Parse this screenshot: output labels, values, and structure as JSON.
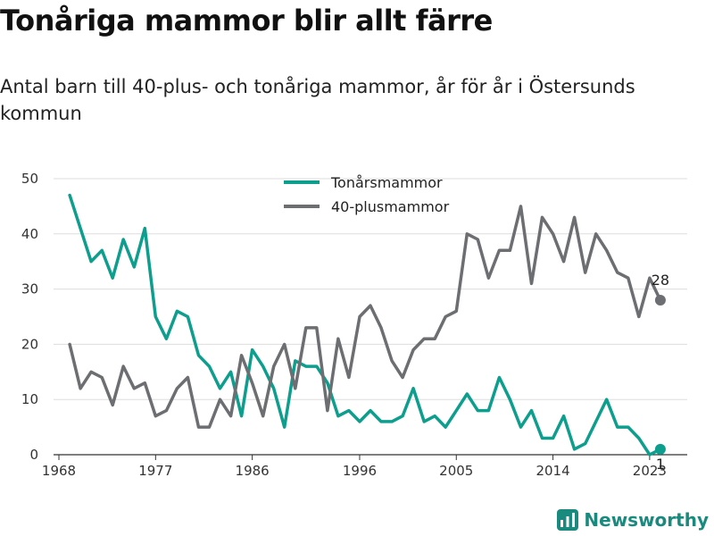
{
  "title": "Tonåriga mammor blir allt färre",
  "subtitle": "Antal barn till 40-plus- och tonåriga mammor, år för år i Östersunds kommun",
  "brand": "Newsworthy",
  "chart_data": {
    "type": "line",
    "x": [
      1969,
      1970,
      1971,
      1972,
      1973,
      1974,
      1975,
      1976,
      1977,
      1978,
      1979,
      1980,
      1981,
      1982,
      1983,
      1984,
      1985,
      1986,
      1987,
      1988,
      1989,
      1990,
      1991,
      1992,
      1993,
      1994,
      1995,
      1996,
      1997,
      1998,
      1999,
      2000,
      2001,
      2002,
      2003,
      2004,
      2005,
      2006,
      2007,
      2008,
      2009,
      2010,
      2011,
      2012,
      2013,
      2014,
      2015,
      2016,
      2017,
      2018,
      2019,
      2020,
      2021,
      2022,
      2023,
      2024
    ],
    "series": [
      {
        "name": "Tonårsmammor",
        "color": "#0e9e8e",
        "values": [
          47,
          41,
          35,
          37,
          32,
          39,
          34,
          41,
          25,
          21,
          26,
          25,
          18,
          16,
          12,
          15,
          7,
          19,
          16,
          12,
          5,
          17,
          16,
          16,
          13,
          7,
          8,
          6,
          8,
          6,
          6,
          7,
          12,
          6,
          7,
          5,
          8,
          11,
          8,
          8,
          14,
          10,
          5,
          8,
          3,
          3,
          7,
          1,
          2,
          6,
          10,
          5,
          5,
          3,
          0,
          1
        ]
      },
      {
        "name": "40-plusmammor",
        "color": "#6d6e71",
        "values": [
          20,
          12,
          15,
          14,
          9,
          16,
          12,
          13,
          7,
          8,
          12,
          14,
          5,
          5,
          10,
          7,
          18,
          13,
          7,
          16,
          20,
          12,
          23,
          23,
          8,
          21,
          14,
          25,
          27,
          23,
          17,
          14,
          19,
          21,
          21,
          25,
          26,
          40,
          39,
          32,
          37,
          37,
          45,
          31,
          43,
          40,
          35,
          43,
          33,
          40,
          37,
          33,
          32,
          25,
          32,
          28
        ]
      }
    ],
    "end_labels": [
      "1",
      "28"
    ],
    "xticks": [
      1968,
      1977,
      1986,
      1996,
      2005,
      2014,
      2023
    ],
    "xticklabels": [
      "1968",
      "1977",
      "1986",
      "1996",
      "2005",
      "2014",
      "2023"
    ],
    "yticks": [
      0,
      10,
      20,
      30,
      40,
      50
    ],
    "yticklabels": [
      "0",
      "10",
      "20",
      "30",
      "40",
      "50"
    ],
    "xlim": [
      1967.5,
      2026.5
    ],
    "ylim": [
      0,
      50
    ],
    "xlabel": "",
    "ylabel": "",
    "grid": "horizontal",
    "legend_position": "top-center"
  }
}
